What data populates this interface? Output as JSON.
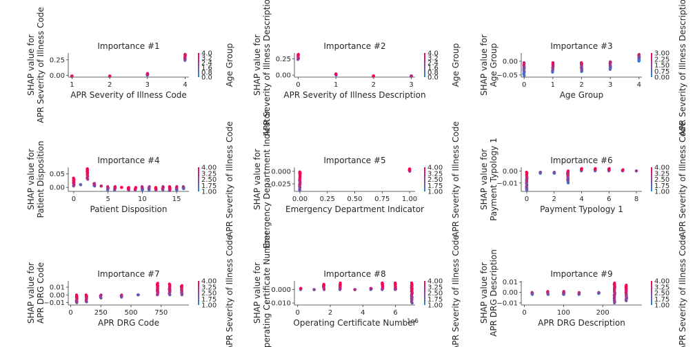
{
  "colors": {
    "low": "#1e88e5",
    "high": "#ff0052"
  },
  "chart_data": [
    {
      "type": "scatter",
      "title": "Importance #1",
      "xlabel": "APR Severity of Illness Code",
      "ylabel": "SHAP value for\nAPR Severity of Illness Code",
      "colorbar_label": "Age Group",
      "xlim": [
        0.9,
        4.1
      ],
      "ylim": [
        -0.03,
        0.36
      ],
      "xticks": [
        1,
        2,
        3,
        4
      ],
      "xtick_labels": [
        "1",
        "2",
        "3",
        "4"
      ],
      "yticks": [
        0.0,
        0.25
      ],
      "ytick_labels": [
        "0.00",
        "0.25"
      ],
      "cticks": [
        "4.0",
        "3.2",
        "2.4",
        "1.6",
        "0.8",
        "0.0"
      ],
      "groups": [
        {
          "x": 1,
          "y_min": -0.02,
          "y_max": -0.01,
          "c": 0.6
        },
        {
          "x": 2,
          "y_min": -0.02,
          "y_max": -0.01,
          "c": 0.6
        },
        {
          "x": 3,
          "y_min": 0.0,
          "y_max": 0.03,
          "c": 0.6
        },
        {
          "x": 4,
          "y_min": 0.24,
          "y_max": 0.34,
          "c": 0.65
        }
      ]
    },
    {
      "type": "scatter",
      "title": "Importance #2",
      "xlabel": "APR Severity of Illness Description",
      "ylabel": "SHAP value for\nAPR Severity of Illness Description",
      "colorbar_label": "Age Group",
      "xlim": [
        -0.1,
        3.1
      ],
      "ylim": [
        -0.03,
        0.34
      ],
      "xticks": [
        0,
        1,
        2,
        3
      ],
      "xtick_labels": [
        "0",
        "1",
        "2",
        "3"
      ],
      "yticks": [
        0.0,
        0.25
      ],
      "ytick_labels": [
        "0.00",
        "0.25"
      ],
      "cticks": [
        "4.0",
        "3.2",
        "2.4",
        "1.6",
        "0.8",
        "0.0"
      ],
      "groups": [
        {
          "x": 0,
          "y_min": 0.24,
          "y_max": 0.32,
          "c": 0.7
        },
        {
          "x": 1,
          "y_min": 0.0,
          "y_max": 0.02,
          "c": 0.6
        },
        {
          "x": 2,
          "y_min": -0.02,
          "y_max": -0.01,
          "c": 0.6
        },
        {
          "x": 3,
          "y_min": -0.02,
          "y_max": -0.01,
          "c": 0.4
        }
      ]
    },
    {
      "type": "scatter",
      "title": "Importance #3",
      "xlabel": "Age Group",
      "ylabel": "SHAP value for\nAge Group",
      "colorbar_label": "APR Severity of Illness Description",
      "xlim": [
        -0.1,
        4.1
      ],
      "ylim": [
        -0.058,
        0.03
      ],
      "xticks": [
        0,
        1,
        2,
        3,
        4
      ],
      "xtick_labels": [
        "0",
        "1",
        "2",
        "3",
        "4"
      ],
      "yticks": [
        0.0,
        -0.05
      ],
      "ytick_labels": [
        "0.00",
        "−0.05"
      ],
      "cticks": [
        "3.00",
        "2.25",
        "1.50",
        "0.75",
        "0.00"
      ],
      "groups": [
        {
          "x": 0,
          "y_min": -0.052,
          "y_max": -0.005,
          "c": 0.45
        },
        {
          "x": 1,
          "y_min": -0.04,
          "y_max": -0.005,
          "c": 0.5
        },
        {
          "x": 2,
          "y_min": -0.038,
          "y_max": -0.005,
          "c": 0.5
        },
        {
          "x": 3,
          "y_min": -0.03,
          "y_max": -0.002,
          "c": 0.45
        },
        {
          "x": 4,
          "y_min": 0.0,
          "y_max": 0.025,
          "c": 0.3
        }
      ]
    },
    {
      "type": "scatter",
      "title": "Importance #4",
      "xlabel": "Patient Disposition",
      "ylabel": "SHAP value for\nPatient Disposition",
      "colorbar_label": "APR Severity of Illness Code",
      "xlim": [
        -0.8,
        16.8
      ],
      "ylim": [
        -0.015,
        0.075
      ],
      "xticks": [
        0,
        5,
        10,
        15
      ],
      "xtick_labels": [
        "0",
        "5",
        "10",
        "15"
      ],
      "yticks": [
        0.0,
        0.05
      ],
      "ytick_labels": [
        "0.00",
        "0.05"
      ],
      "cticks": [
        "4.00",
        "3.25",
        "2.50",
        "1.75",
        "1.00"
      ],
      "groups": [
        {
          "x": 0,
          "y_min": 0.005,
          "y_max": 0.035,
          "c": 0.8
        },
        {
          "x": 1,
          "y_min": 0.01,
          "y_max": 0.01,
          "c": 0.1
        },
        {
          "x": 2,
          "y_min": 0.03,
          "y_max": 0.07,
          "c": 0.9
        },
        {
          "x": 3,
          "y_min": 0.005,
          "y_max": 0.015,
          "c": 0.5
        },
        {
          "x": 4,
          "y_min": 0.005,
          "y_max": 0.005,
          "c": 0.4
        },
        {
          "x": 5,
          "y_min": -0.01,
          "y_max": 0.003,
          "c": 0.5
        },
        {
          "x": 6,
          "y_min": -0.01,
          "y_max": 0.003,
          "c": 0.6
        },
        {
          "x": 7,
          "y_min": 0.0,
          "y_max": 0.0,
          "c": 0.9
        },
        {
          "x": 8,
          "y_min": -0.01,
          "y_max": 0.0,
          "c": 0.8
        },
        {
          "x": 9,
          "y_min": -0.01,
          "y_max": 0.0,
          "c": 0.8
        },
        {
          "x": 10,
          "y_min": -0.01,
          "y_max": 0.003,
          "c": 0.4
        },
        {
          "x": 11,
          "y_min": -0.01,
          "y_max": 0.003,
          "c": 0.4
        },
        {
          "x": 12,
          "y_min": -0.01,
          "y_max": 0.0,
          "c": 0.85
        },
        {
          "x": 13,
          "y_min": -0.01,
          "y_max": 0.003,
          "c": 0.6
        },
        {
          "x": 14,
          "y_min": -0.012,
          "y_max": 0.003,
          "c": 0.8
        },
        {
          "x": 15,
          "y_min": -0.01,
          "y_max": 0.003,
          "c": 0.5
        },
        {
          "x": 16,
          "y_min": -0.005,
          "y_max": 0.003,
          "c": 0.3
        }
      ]
    },
    {
      "type": "scatter",
      "title": "Importance #5",
      "xlabel": "Emergency Department Indicator",
      "ylabel": "SHAP value for\nEmergency Department Indicator",
      "colorbar_label": "APR Severity of Illness Code",
      "xlim": [
        -0.05,
        1.05
      ],
      "ylim": [
        -0.04,
        0.008
      ],
      "xticks": [
        0,
        0.25,
        0.5,
        0.75,
        1.0
      ],
      "xtick_labels": [
        "0.00",
        "0.25",
        "0.50",
        "0.75",
        "1.00"
      ],
      "yticks": [
        0.0,
        -0.025
      ],
      "ytick_labels": [
        "0.000",
        "−0.025"
      ],
      "cticks": [
        "4.00",
        "3.25",
        "2.50",
        "1.75",
        "1.00"
      ],
      "groups": [
        {
          "x": 0,
          "y_min": -0.038,
          "y_max": -0.001,
          "c": 0.75
        },
        {
          "x": 1,
          "y_min": 0.0,
          "y_max": 0.005,
          "c": 0.75
        }
      ]
    },
    {
      "type": "scatter",
      "title": "Importance #6",
      "xlabel": "Payment Typology 1",
      "ylabel": "SHAP value for\nPayment Typology 1",
      "colorbar_label": "APR Severity of Illness Code",
      "xlim": [
        -0.4,
        8.4
      ],
      "ylim": [
        -0.017,
        0.003
      ],
      "xticks": [
        0,
        2,
        4,
        6,
        8
      ],
      "xtick_labels": [
        "0",
        "2",
        "4",
        "6",
        "8"
      ],
      "yticks": [
        0.0,
        -0.01
      ],
      "ytick_labels": [
        "0.00",
        "−0.01"
      ],
      "cticks": [
        "4.00",
        "3.25",
        "2.50",
        "1.75",
        "1.00"
      ],
      "groups": [
        {
          "x": 0,
          "y_min": -0.016,
          "y_max": -0.001,
          "c": 0.6
        },
        {
          "x": 1,
          "y_min": -0.002,
          "y_max": -0.001,
          "c": 0.2
        },
        {
          "x": 2,
          "y_min": -0.002,
          "y_max": -0.001,
          "c": 0.2
        },
        {
          "x": 3,
          "y_min": -0.01,
          "y_max": 0.0,
          "c": 0.55
        },
        {
          "x": 4,
          "y_min": 0.0,
          "y_max": 0.002,
          "c": 0.6
        },
        {
          "x": 5,
          "y_min": 0.0,
          "y_max": 0.002,
          "c": 0.6
        },
        {
          "x": 6,
          "y_min": 0.0,
          "y_max": 0.002,
          "c": 0.6
        },
        {
          "x": 7,
          "y_min": 0.0,
          "y_max": 0.001,
          "c": 0.7
        },
        {
          "x": 8,
          "y_min": 0.0,
          "y_max": 0.0,
          "c": 0.4
        }
      ]
    },
    {
      "type": "scatter",
      "title": "Importance #7",
      "xlabel": "APR DRG Code",
      "ylabel": "SHAP value for\nAPR DRG Code",
      "colorbar_label": "APR Severity of Illness Code",
      "xlim": [
        -20,
        980
      ],
      "ylim": [
        -0.013,
        0.018
      ],
      "xticks": [
        0,
        250,
        500,
        750
      ],
      "xtick_labels": [
        "0",
        "250",
        "500",
        "750"
      ],
      "yticks": [
        0.01,
        0.0,
        -0.01
      ],
      "ytick_labels": [
        "0.01",
        "0.00",
        "−0.01"
      ],
      "cticks": [
        "4.00",
        "3.25",
        "2.50",
        "1.75",
        "1.00"
      ],
      "groups": [
        {
          "x": 50,
          "y_min": -0.01,
          "y_max": 0.0,
          "c": 0.7
        },
        {
          "x": 130,
          "y_min": -0.009,
          "y_max": 0.0,
          "c": 0.65
        },
        {
          "x": 250,
          "y_min": -0.004,
          "y_max": 0.0,
          "c": 0.5
        },
        {
          "x": 420,
          "y_min": -0.003,
          "y_max": 0.0,
          "c": 0.4
        },
        {
          "x": 560,
          "y_min": 0.0,
          "y_max": 0.0,
          "c": 0.25
        },
        {
          "x": 720,
          "y_min": 0.0,
          "y_max": 0.015,
          "c": 0.8
        },
        {
          "x": 820,
          "y_min": 0.0,
          "y_max": 0.014,
          "c": 0.7
        },
        {
          "x": 920,
          "y_min": 0.0,
          "y_max": 0.012,
          "c": 0.7
        }
      ]
    },
    {
      "type": "scatter",
      "title": "Importance #8",
      "xlabel": "Operating Certificate Number",
      "ylabel": "SHAP value for\nOperating Certificate Number",
      "colorbar_label": "APR Severity of Illness Code",
      "x_offset_label": "1e6",
      "xlim": [
        -0.2,
        7.2
      ],
      "ylim": [
        -0.0115,
        0.0065
      ],
      "xticks": [
        0,
        2,
        4,
        6
      ],
      "xtick_labels": [
        "0",
        "2",
        "4",
        "6"
      ],
      "yticks": [
        0.0,
        -0.01
      ],
      "ytick_labels": [
        "0.000",
        "−0.010"
      ],
      "cticks": [
        "4.00",
        "3.25",
        "2.50",
        "1.75",
        "1.00"
      ],
      "groups": [
        {
          "x": 0.2,
          "y_min": 0.0,
          "y_max": 0.001,
          "c": 0.5
        },
        {
          "x": 1.0,
          "y_min": 0.0,
          "y_max": 0.0,
          "c": 0.3
        },
        {
          "x": 1.6,
          "y_min": 0.0,
          "y_max": 0.004,
          "c": 0.8
        },
        {
          "x": 2.6,
          "y_min": 0.0,
          "y_max": 0.005,
          "c": 0.8
        },
        {
          "x": 3.5,
          "y_min": 0.0,
          "y_max": 0.0,
          "c": 0.3
        },
        {
          "x": 4.5,
          "y_min": 0.0,
          "y_max": 0.001,
          "c": 0.4
        },
        {
          "x": 5.2,
          "y_min": 0.0,
          "y_max": 0.005,
          "c": 0.8
        },
        {
          "x": 6.0,
          "y_min": 0.0,
          "y_max": 0.005,
          "c": 0.8
        },
        {
          "x": 7.0,
          "y_min": -0.01,
          "y_max": 0.005,
          "c": 0.75
        }
      ]
    },
    {
      "type": "scatter",
      "title": "Importance #9",
      "xlabel": "APR DRG Description",
      "ylabel": "SHAP value for\nAPR DRG Description",
      "colorbar_label": "APR Severity of Illness Code",
      "xlim": [
        -8,
        300
      ],
      "ylim": [
        -0.012,
        0.011
      ],
      "xticks": [
        0,
        100,
        200
      ],
      "xtick_labels": [
        "0",
        "100",
        "200"
      ],
      "yticks": [
        0.01,
        0.0,
        -0.01
      ],
      "ytick_labels": [
        "0.01",
        "0.00",
        "−0.01"
      ],
      "cticks": [
        "4.00",
        "3.25",
        "2.50",
        "1.75",
        "1.00"
      ],
      "groups": [
        {
          "x": 20,
          "y_min": -0.002,
          "y_max": 0.0,
          "c": 0.4
        },
        {
          "x": 60,
          "y_min": -0.002,
          "y_max": 0.001,
          "c": 0.45
        },
        {
          "x": 100,
          "y_min": -0.002,
          "y_max": 0.001,
          "c": 0.5
        },
        {
          "x": 140,
          "y_min": -0.002,
          "y_max": 0.0,
          "c": 0.45
        },
        {
          "x": 190,
          "y_min": -0.001,
          "y_max": 0.0,
          "c": 0.3
        },
        {
          "x": 230,
          "y_min": -0.01,
          "y_max": 0.009,
          "c": 0.7
        },
        {
          "x": 260,
          "y_min": -0.008,
          "y_max": 0.007,
          "c": 0.7
        }
      ]
    }
  ]
}
